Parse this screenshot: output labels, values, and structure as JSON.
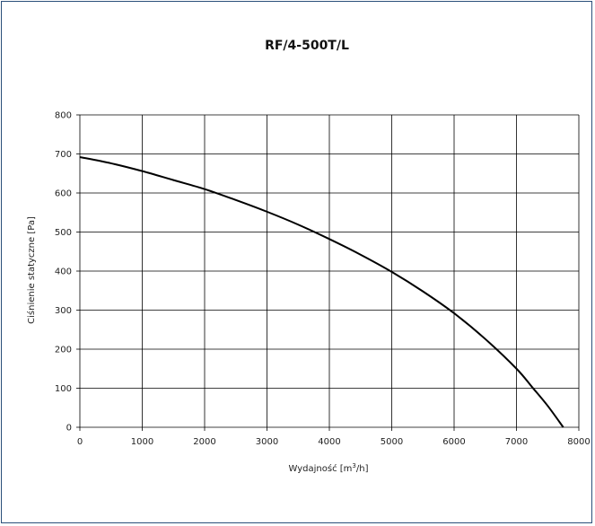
{
  "chart_data": {
    "type": "line",
    "title": "RF/4-500T/L",
    "xlabel_prefix": "Wydajność [m",
    "xlabel_sup": "3",
    "xlabel_suffix": "/h]",
    "ylabel": "Ciśnienie statyczne [Pa]",
    "xlim": [
      0,
      8000
    ],
    "ylim": [
      0,
      800
    ],
    "x_ticks": [
      "0",
      "1000",
      "2000",
      "3000",
      "4000",
      "5000",
      "6000",
      "7000",
      "8000"
    ],
    "y_ticks": [
      "0",
      "100",
      "200",
      "300",
      "400",
      "500",
      "600",
      "700",
      "800"
    ],
    "grid": true,
    "series": [
      {
        "x": [
          0,
          500,
          1000,
          1500,
          2000,
          2500,
          3000,
          3500,
          4000,
          4500,
          5000,
          5500,
          6000,
          6500,
          7000,
          7250,
          7500,
          7750
        ],
        "y": [
          692,
          676,
          656,
          633,
          610,
          582,
          552,
          519,
          482,
          442,
          398,
          348,
          292,
          226,
          150,
          103,
          55,
          0
        ]
      }
    ]
  },
  "colors": {
    "frame": "#2b4f7a",
    "line": "#000000",
    "grid": "#000000"
  }
}
